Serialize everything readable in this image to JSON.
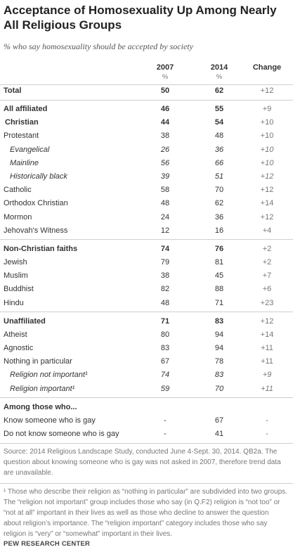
{
  "header": {
    "title": "Acceptance of Homosexuality Up Among Nearly All Religious Groups",
    "subtitle": "% who say homosexuality should be accepted by society"
  },
  "table": {
    "columns": [
      "2007",
      "2014",
      "Change"
    ],
    "units": [
      "%",
      "%"
    ],
    "groups": [
      [
        {
          "label": "Total",
          "bold": true,
          "values": [
            50,
            62
          ],
          "change": "+12"
        }
      ],
      [
        {
          "label": "All affiliated",
          "bold": true,
          "values": [
            46,
            55
          ],
          "change": "+9"
        },
        {
          "label": "Christian",
          "bold": true,
          "indent": 1,
          "values": [
            44,
            54
          ],
          "change": "+10"
        },
        {
          "label": "Protestant",
          "values": [
            38,
            48
          ],
          "change": "+10"
        },
        {
          "label": "Evangelical",
          "italic": true,
          "indent": 2,
          "values": [
            26,
            36
          ],
          "change": "+10"
        },
        {
          "label": "Mainline",
          "italic": true,
          "indent": 2,
          "values": [
            56,
            66
          ],
          "change": "+10"
        },
        {
          "label": "Historically black",
          "italic": true,
          "indent": 2,
          "values": [
            39,
            51
          ],
          "change": "+12"
        },
        {
          "label": "Catholic",
          "values": [
            58,
            70
          ],
          "change": "+12"
        },
        {
          "label": "Orthodox Christian",
          "values": [
            48,
            62
          ],
          "change": "+14"
        },
        {
          "label": "Mormon",
          "values": [
            24,
            36
          ],
          "change": "+12"
        },
        {
          "label": "Jehovah's Witness",
          "values": [
            12,
            16
          ],
          "change": "+4"
        }
      ],
      [
        {
          "label": "Non-Christian faiths",
          "bold": true,
          "values": [
            74,
            76
          ],
          "change": "+2"
        },
        {
          "label": "Jewish",
          "values": [
            79,
            81
          ],
          "change": "+2"
        },
        {
          "label": "Muslim",
          "values": [
            38,
            45
          ],
          "change": "+7"
        },
        {
          "label": "Buddhist",
          "values": [
            82,
            88
          ],
          "change": "+6"
        },
        {
          "label": "Hindu",
          "values": [
            48,
            71
          ],
          "change": "+23"
        }
      ],
      [
        {
          "label": "Unaffiliated",
          "bold": true,
          "values": [
            71,
            83
          ],
          "change": "+12"
        },
        {
          "label": "Atheist",
          "values": [
            80,
            94
          ],
          "change": "+14"
        },
        {
          "label": "Agnostic",
          "values": [
            83,
            94
          ],
          "change": "+11"
        },
        {
          "label": "Nothing in particular",
          "values": [
            67,
            78
          ],
          "change": "+11"
        },
        {
          "label": "Religion not important¹",
          "italic": true,
          "indent": 2,
          "values": [
            74,
            83
          ],
          "change": "+9"
        },
        {
          "label": "Religion important¹",
          "italic": true,
          "indent": 2,
          "values": [
            59,
            70
          ],
          "change": "+11"
        }
      ],
      [
        {
          "label": "Among those who...",
          "bold": true
        },
        {
          "label": "Know someone who is gay",
          "values": [
            "-",
            67
          ],
          "change": "-"
        },
        {
          "label": "Do not know someone who is gay",
          "values": [
            "-",
            41
          ],
          "change": "-"
        }
      ]
    ]
  },
  "footer": {
    "source": "Source: 2014 Religious Landscape Study, conducted June 4-Sept. 30, 2014. QB2a. The question about knowing someone who is gay was not asked in 2007, therefore trend data are unavailable.",
    "footnote": "¹ Those who describe their religion as “nothing in particular” are subdivided into two groups. The “religion not important” group includes those who say (in Q.F2) religion is “not too” or “not at all” important in their lives as well as those who decline to answer the question about religion’s importance. The “religion important” category includes those who say religion is “very” or “somewhat” important in their lives.",
    "brand": "PEW RESEARCH CENTER"
  }
}
